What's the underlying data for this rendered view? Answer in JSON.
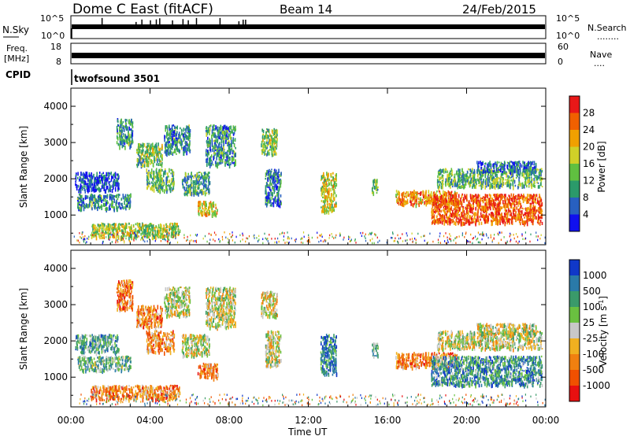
{
  "header": {
    "radar": "Dome C East (fitACF)",
    "beam": "Beam 14",
    "date": "24/Feb/2015"
  },
  "nsky": {
    "label": "N.Sky",
    "ticks": [
      "10^5",
      "10^0"
    ],
    "right_ticks": [
      "10^5",
      "10^0"
    ],
    "right_label": "N.Search",
    "right_label_line": "........"
  },
  "freq": {
    "label_line1": "Freq.",
    "label_line2": "[MHz]",
    "ticks": [
      "18",
      "8"
    ],
    "right_ticks": [
      "60",
      "0"
    ],
    "right_label": "Nave",
    "right_label_line": "...."
  },
  "cpid": {
    "label": "CPID",
    "value": "twofsound 3501"
  },
  "chart_data": [
    {
      "type": "heatmap",
      "title": "",
      "xlabel": "",
      "ylabel": "Slant Range [km]",
      "y_ticks": [
        "1000",
        "2000",
        "3000",
        "4000"
      ],
      "ylim": [
        180,
        4500
      ],
      "xlim_hours": [
        0,
        24
      ],
      "colorbar": {
        "label": "Power [dB]",
        "ticks": [
          "4",
          "8",
          "12",
          "16",
          "20",
          "24",
          "28"
        ],
        "range": [
          0,
          32
        ],
        "colors": [
          "#1010ee",
          "#2860c0",
          "#2b9a6a",
          "#60c040",
          "#d0d028",
          "#f0a000",
          "#f06000",
          "#e81818"
        ]
      },
      "regions": [
        {
          "t": [
            0.2,
            2.4
          ],
          "r": [
            1700,
            2200
          ],
          "level": 0.15
        },
        {
          "t": [
            0.3,
            3.0
          ],
          "r": [
            1200,
            1600
          ],
          "level": 0.3
        },
        {
          "t": [
            1.0,
            5.5
          ],
          "r": [
            400,
            800
          ],
          "level": 0.5
        },
        {
          "t": [
            2.3,
            3.1
          ],
          "r": [
            2900,
            3700
          ],
          "level": 0.3
        },
        {
          "t": [
            3.3,
            4.6
          ],
          "r": [
            2400,
            3000
          ],
          "level": 0.45
        },
        {
          "t": [
            3.8,
            5.2
          ],
          "r": [
            1700,
            2300
          ],
          "level": 0.4
        },
        {
          "t": [
            4.7,
            6.0
          ],
          "r": [
            2700,
            3500
          ],
          "level": 0.3
        },
        {
          "t": [
            5.6,
            7.0
          ],
          "r": [
            1600,
            2200
          ],
          "level": 0.35
        },
        {
          "t": [
            6.4,
            7.4
          ],
          "r": [
            1000,
            1400
          ],
          "level": 0.6
        },
        {
          "t": [
            6.8,
            8.3
          ],
          "r": [
            2400,
            3500
          ],
          "level": 0.3
        },
        {
          "t": [
            9.6,
            10.4
          ],
          "r": [
            2700,
            3400
          ],
          "level": 0.45
        },
        {
          "t": [
            9.8,
            10.6
          ],
          "r": [
            1300,
            2300
          ],
          "level": 0.25
        },
        {
          "t": [
            12.6,
            13.4
          ],
          "r": [
            1100,
            2200
          ],
          "level": 0.55
        },
        {
          "t": [
            15.2,
            15.5
          ],
          "r": [
            1600,
            2000
          ],
          "level": 0.4
        },
        {
          "t": [
            16.4,
            19.5
          ],
          "r": [
            1300,
            1700
          ],
          "level": 0.7
        },
        {
          "t": [
            18.2,
            23.8
          ],
          "r": [
            800,
            1600
          ],
          "level": 0.85
        },
        {
          "t": [
            18.5,
            23.8
          ],
          "r": [
            1800,
            2300
          ],
          "level": 0.4
        },
        {
          "t": [
            20.5,
            23.5
          ],
          "r": [
            2200,
            2500
          ],
          "level": 0.2
        }
      ]
    },
    {
      "type": "heatmap",
      "title": "",
      "xlabel": "Time UT",
      "ylabel": "Slant Range [km]",
      "x_ticks": [
        "00:00",
        "04:00",
        "08:00",
        "12:00",
        "16:00",
        "20:00",
        "00:00"
      ],
      "y_ticks": [
        "1000",
        "2000",
        "3000",
        "4000"
      ],
      "ylim": [
        180,
        4500
      ],
      "xlim_hours": [
        0,
        24
      ],
      "colorbar": {
        "label": "Velocity [m s^-1]",
        "ticks": [
          "1000",
          "500",
          "100",
          "25",
          "-25",
          "-100",
          "-500",
          "-1000"
        ],
        "colors": [
          "#1038c8",
          "#2a7aa8",
          "#3a9a6a",
          "#6ac040",
          "#c8c8c8",
          "#f0b020",
          "#f08010",
          "#f05000",
          "#e81010"
        ]
      },
      "regions": [
        {
          "t": [
            0.2,
            2.4
          ],
          "r": [
            1700,
            2200
          ],
          "level": 0.3
        },
        {
          "t": [
            0.3,
            3.0
          ],
          "r": [
            1200,
            1600
          ],
          "level": 0.35
        },
        {
          "t": [
            1.0,
            5.5
          ],
          "r": [
            400,
            800
          ],
          "level": 0.72
        },
        {
          "t": [
            2.3,
            3.1
          ],
          "r": [
            2900,
            3700
          ],
          "level": 0.75
        },
        {
          "t": [
            3.3,
            4.6
          ],
          "r": [
            2400,
            3000
          ],
          "level": 0.72
        },
        {
          "t": [
            3.8,
            5.2
          ],
          "r": [
            1700,
            2300
          ],
          "level": 0.7
        },
        {
          "t": [
            4.7,
            6.0
          ],
          "r": [
            2700,
            3500
          ],
          "level": 0.5
        },
        {
          "t": [
            5.6,
            7.0
          ],
          "r": [
            1600,
            2200
          ],
          "level": 0.5
        },
        {
          "t": [
            6.4,
            7.4
          ],
          "r": [
            1000,
            1400
          ],
          "level": 0.75
        },
        {
          "t": [
            6.8,
            8.3
          ],
          "r": [
            2400,
            3500
          ],
          "level": 0.5
        },
        {
          "t": [
            9.6,
            10.4
          ],
          "r": [
            2700,
            3400
          ],
          "level": 0.55
        },
        {
          "t": [
            9.8,
            10.6
          ],
          "r": [
            1300,
            2300
          ],
          "level": 0.5
        },
        {
          "t": [
            12.6,
            13.4
          ],
          "r": [
            1100,
            2200
          ],
          "level": 0.2
        },
        {
          "t": [
            15.2,
            15.5
          ],
          "r": [
            1600,
            2000
          ],
          "level": 0.3
        },
        {
          "t": [
            16.4,
            19.5
          ],
          "r": [
            1300,
            1700
          ],
          "level": 0.72
        },
        {
          "t": [
            18.2,
            23.8
          ],
          "r": [
            800,
            1600
          ],
          "level": 0.25
        },
        {
          "t": [
            18.5,
            23.8
          ],
          "r": [
            1800,
            2300
          ],
          "level": 0.5
        },
        {
          "t": [
            20.5,
            23.5
          ],
          "r": [
            2200,
            2500
          ],
          "level": 0.5
        }
      ]
    }
  ]
}
